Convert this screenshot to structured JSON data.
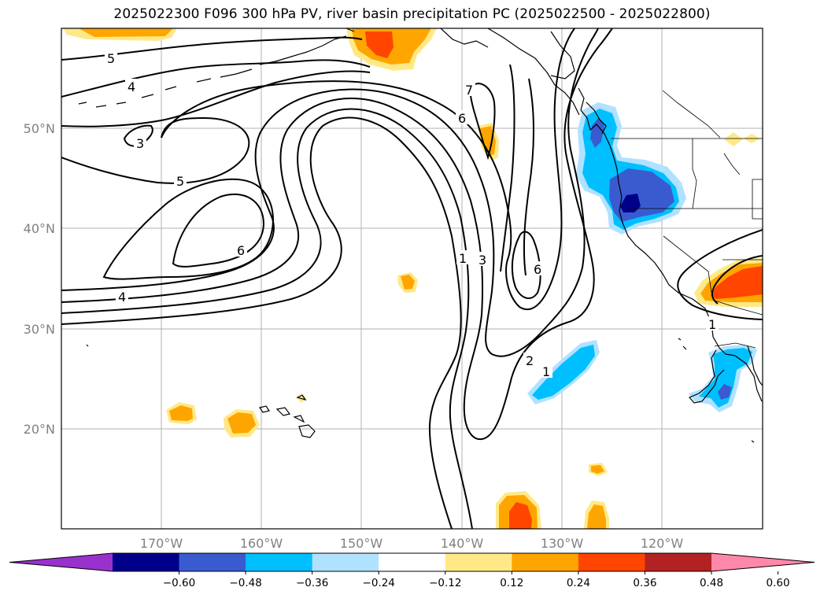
{
  "title": "2025022300 F096 300 hPa PV, river basin precipitation PC (2025022500 - 2025022800)",
  "axes": {
    "lat_labels": [
      "50°N",
      "40°N",
      "30°N",
      "20°N"
    ],
    "lon_labels": [
      "170°W",
      "160°W",
      "150°W",
      "140°W",
      "130°W",
      "120°W"
    ],
    "gridlines": true,
    "grid_color": "#b0b0b0"
  },
  "contour_labels": [
    "5",
    "4",
    "3",
    "5",
    "6",
    "4",
    "7",
    "6",
    "1",
    "3",
    "6",
    "2",
    "1",
    "1"
  ],
  "colorbar": {
    "orientation": "horizontal",
    "extend": "both",
    "tick_labels": [
      "−0.60",
      "−0.48",
      "−0.36",
      "−0.24",
      "−0.12",
      "0.12",
      "0.24",
      "0.36",
      "0.48",
      "0.60"
    ],
    "colors": [
      "#9932cc",
      "#00008b",
      "#3a5bd0",
      "#00bfff",
      "#b0e2ff",
      "#ffffff",
      "#ffe987",
      "#ffa500",
      "#ff4500",
      "#b22222",
      "#ff88aa"
    ]
  },
  "colors": {
    "neg_strong": "#00008b",
    "neg_mid": "#3a5bd0",
    "neg": "#00bfff",
    "neg_light": "#b0e2ff",
    "pos_light": "#ffe987",
    "pos": "#ffa500",
    "pos_mid": "#ff4500",
    "contour": "#000000",
    "coast": "#000000"
  }
}
